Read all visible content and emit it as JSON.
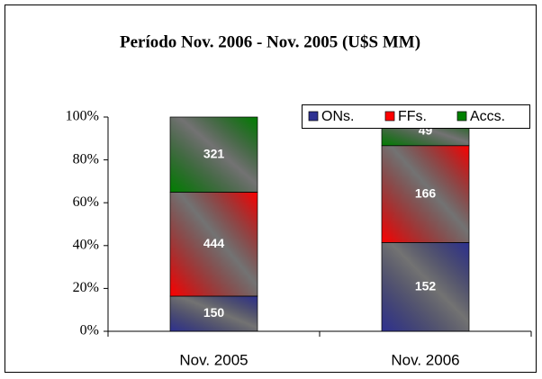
{
  "chart_data": {
    "type": "bar",
    "stacked": "percent",
    "title": "Período Nov. 2006 - Nov. 2005 (U$S MM)",
    "categories": [
      "Nov. 2005",
      "Nov. 2006"
    ],
    "series": [
      {
        "name": "ONs.",
        "color": "#2e3192",
        "values": [
          150,
          152
        ]
      },
      {
        "name": "FFs.",
        "color": "#ff0000",
        "values": [
          444,
          166
        ]
      },
      {
        "name": "Accs.",
        "color": "#008000",
        "values": [
          321,
          49
        ]
      }
    ],
    "ylim": [
      0,
      100
    ],
    "yticks": [
      {
        "value": 0,
        "label": "0%"
      },
      {
        "value": 20,
        "label": "20%"
      },
      {
        "value": 40,
        "label": "40%"
      },
      {
        "value": 60,
        "label": "60%"
      },
      {
        "value": 80,
        "label": "80%"
      },
      {
        "value": 100,
        "label": "100%"
      }
    ],
    "legend": "top-right"
  }
}
